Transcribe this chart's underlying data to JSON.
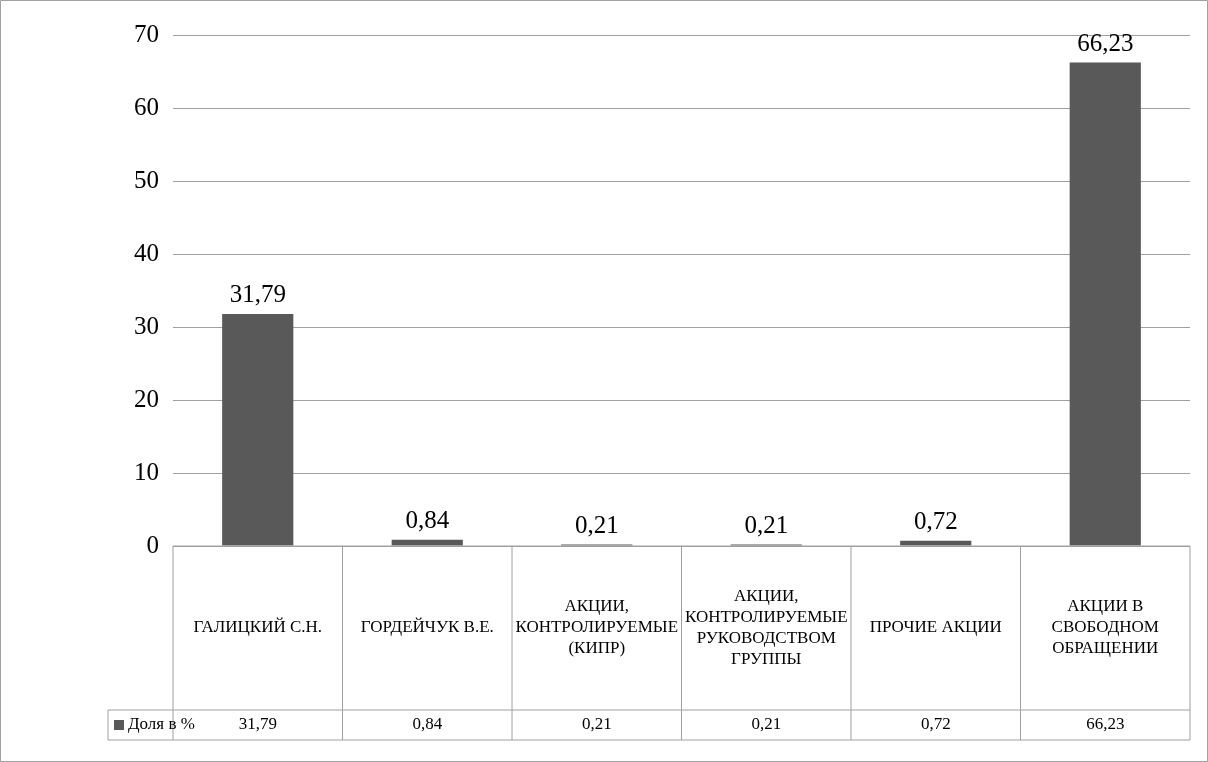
{
  "chart_data": {
    "type": "bar",
    "categories": [
      "ГАЛИЦКИЙ С.Н.",
      "ГОРДЕЙЧУК В.Е.",
      "АКЦИИ, КОНТРОЛИРУЕМЫЕ (КИПР)",
      "АКЦИИ, КОНТРОЛИРУЕМЫЕ РУКОВОДСТВОМ ГРУППЫ",
      "ПРОЧИЕ АКЦИИ",
      "АКЦИИ В СВОБОДНОМ ОБРАЩЕНИИ"
    ],
    "series": [
      {
        "name": "Доля в %",
        "color": "#595959",
        "values": [
          31.79,
          0.84,
          0.21,
          0.21,
          0.72,
          66.23
        ],
        "value_labels": [
          "31,79",
          "0,84",
          "0,21",
          "0,21",
          "0,72",
          "66,23"
        ]
      }
    ],
    "ylim": [
      0,
      70
    ],
    "yticks": [
      0,
      10,
      20,
      30,
      40,
      50,
      60,
      70
    ],
    "grid": "y",
    "legend": "bottom",
    "data_labels": true
  }
}
